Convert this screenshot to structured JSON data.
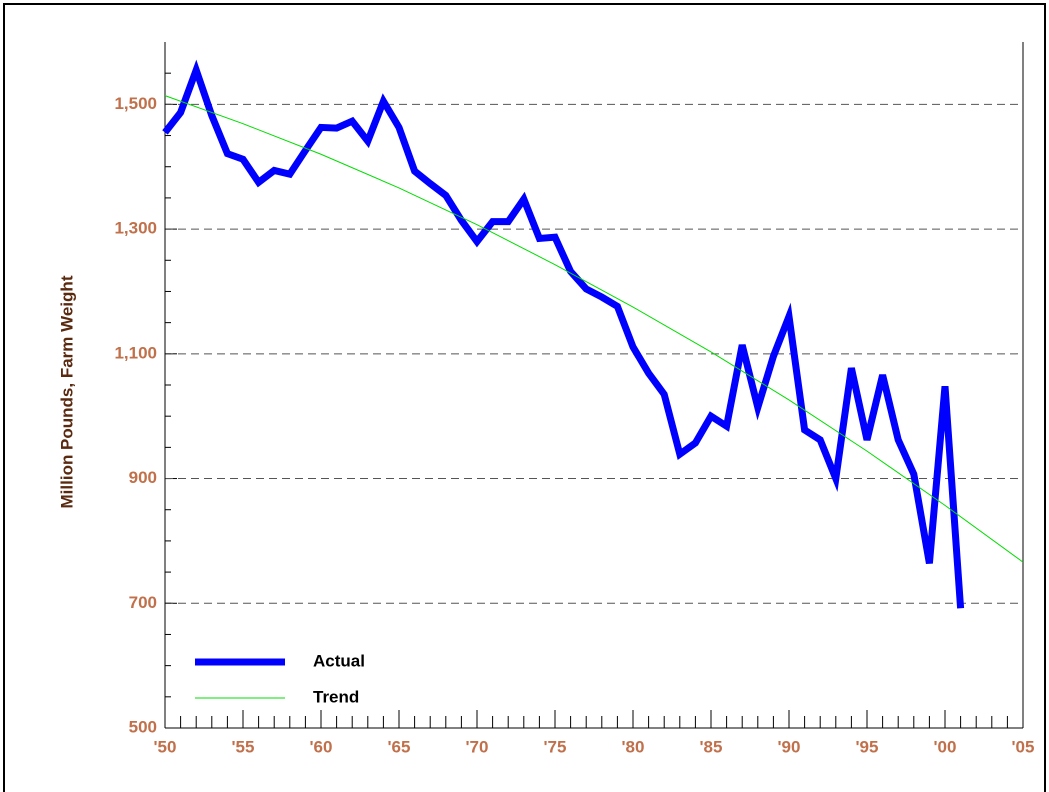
{
  "chart_data": {
    "type": "line",
    "y_label": "Million Pounds, Farm Weight",
    "series": [
      {
        "name": "Actual",
        "color": "#0000ff",
        "x": [
          1950,
          1951,
          1952,
          1953,
          1954,
          1955,
          1956,
          1957,
          1958,
          1959,
          1960,
          1961,
          1962,
          1963,
          1964,
          1965,
          1966,
          1967,
          1968,
          1969,
          1970,
          1971,
          1972,
          1973,
          1974,
          1975,
          1976,
          1977,
          1978,
          1979,
          1980,
          1981,
          1982,
          1983,
          1984,
          1985,
          1986,
          1987,
          1988,
          1989,
          1990,
          1991,
          1992,
          1993,
          1994,
          1995,
          1996,
          1997,
          1998,
          1999,
          2000,
          2001
        ],
        "values": [
          1455,
          1487,
          1555,
          1482,
          1421,
          1412,
          1375,
          1394,
          1388,
          1426,
          1463,
          1462,
          1473,
          1441,
          1505,
          1463,
          1393,
          1373,
          1354,
          1314,
          1280,
          1312,
          1312,
          1348,
          1285,
          1287,
          1232,
          1204,
          1191,
          1176,
          1111,
          1069,
          1035,
          939,
          957,
          1000,
          984,
          1114,
          1014,
          1096,
          1160,
          978,
          962,
          900,
          1077,
          962,
          1066,
          962,
          907,
          764,
          1048,
          692
        ]
      },
      {
        "name": "Trend",
        "color": "#00dd00",
        "x": [
          1950,
          1955,
          1960,
          1965,
          1970,
          1975,
          1980,
          1985,
          1990,
          1995,
          2000,
          2005
        ],
        "values": [
          1514,
          1469,
          1420,
          1366,
          1307,
          1243,
          1175,
          1103,
          1026,
          944,
          857,
          766
        ]
      }
    ],
    "xlim": [
      1950,
      2005
    ],
    "xticks": [
      {
        "value": 1950,
        "label": "'50"
      },
      {
        "value": 1955,
        "label": "'55"
      },
      {
        "value": 1960,
        "label": "'60"
      },
      {
        "value": 1965,
        "label": "'65"
      },
      {
        "value": 1970,
        "label": "'70"
      },
      {
        "value": 1975,
        "label": "'75"
      },
      {
        "value": 1980,
        "label": "'80"
      },
      {
        "value": 1985,
        "label": "'85"
      },
      {
        "value": 1990,
        "label": "'90"
      },
      {
        "value": 1995,
        "label": "'95"
      },
      {
        "value": 2000,
        "label": "'00"
      },
      {
        "value": 2005,
        "label": "'05"
      }
    ],
    "ylim": [
      500,
      1600
    ],
    "yticks": [
      500,
      700,
      900,
      {
        "value": 1100,
        "label": "1,100"
      },
      {
        "value": 1300,
        "label": "1,300"
      },
      {
        "value": 1500,
        "label": "1,500"
      }
    ],
    "grid": true,
    "legend": "lower-left"
  }
}
